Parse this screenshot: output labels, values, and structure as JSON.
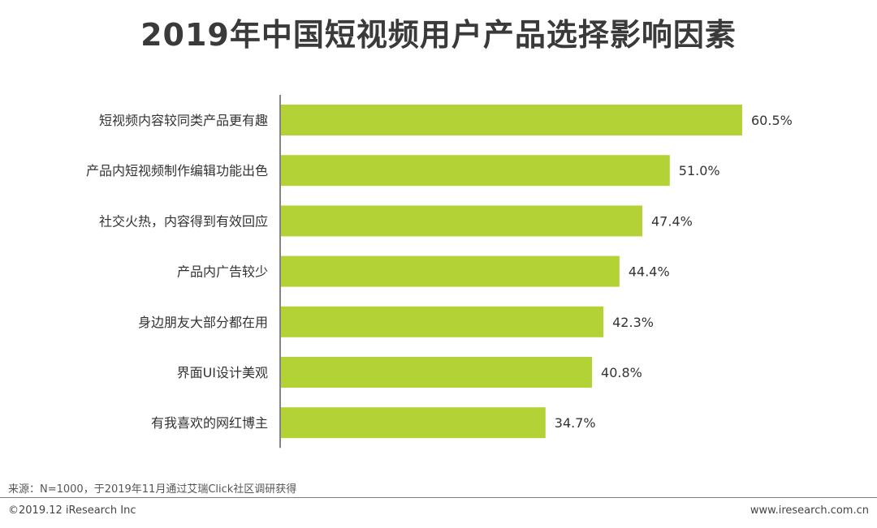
{
  "chart_data": {
    "type": "bar",
    "orientation": "horizontal",
    "title": "2019年中国短视频用户产品选择影响因素",
    "categories": [
      "短视频内容较同类产品更有趣",
      "产品内短视频制作编辑功能出色",
      "社交火热，内容得到有效回应",
      "产品内广告较少",
      "身边朋友大部分都在用",
      "界面UI设计美观",
      "有我喜欢的网红博主"
    ],
    "values": [
      60.5,
      51.0,
      47.4,
      44.4,
      42.3,
      40.8,
      34.7
    ],
    "value_labels": [
      "60.5%",
      "51.0%",
      "47.4%",
      "44.4%",
      "42.3%",
      "40.8%",
      "34.7%"
    ],
    "xlim": [
      0,
      60.5
    ],
    "bar_color": "#b2d235",
    "xlabel": "",
    "ylabel": "",
    "grid": false,
    "legend": "none"
  },
  "footer": {
    "source": "来源：N=1000，于2019年11月通过艾瑞Click社区调研获得",
    "copyright": "©2019.12 iResearch Inc",
    "website": "www.iresearch.com.cn"
  }
}
